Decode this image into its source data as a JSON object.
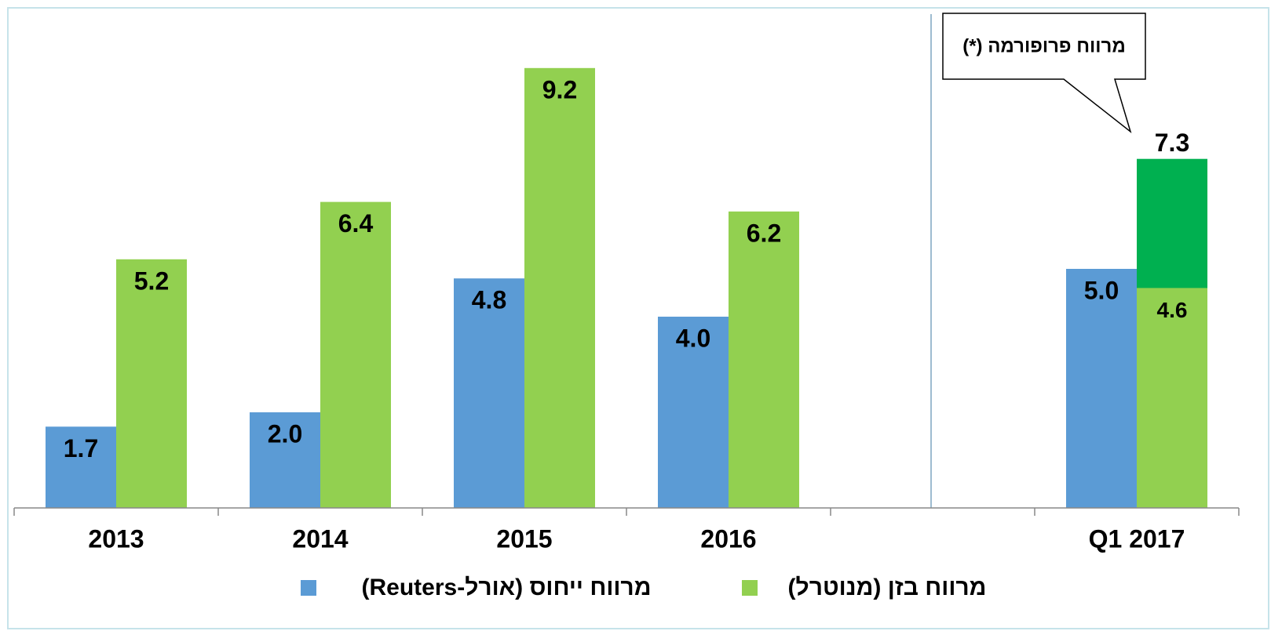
{
  "chart_data": {
    "type": "bar",
    "categories": [
      "2013",
      "2014",
      "2015",
      "2016",
      null,
      "Q1 2017"
    ],
    "series": [
      {
        "name": "מרווח ייחוס (אורל-Reuters)",
        "color": "#5b9bd5",
        "values": [
          1.7,
          2.0,
          4.8,
          4.0,
          null,
          5.0
        ],
        "value_labels": [
          "1.7",
          "2.0",
          "4.8",
          "4.0",
          null,
          "5.0"
        ]
      },
      {
        "name": "מרווח בזן (מנוטרל)",
        "color": "#92d050",
        "values": [
          5.2,
          6.4,
          9.2,
          6.2,
          null,
          4.6
        ],
        "value_labels": [
          "5.2",
          "6.4",
          "9.2",
          "6.2",
          null,
          "4.6"
        ]
      },
      {
        "name": "מרווח פרופורמה (*)",
        "color": "#00b050",
        "values": [
          null,
          null,
          null,
          null,
          null,
          7.3
        ],
        "value_labels": [
          null,
          null,
          null,
          null,
          null,
          "7.3"
        ]
      }
    ],
    "ylim": [
      0,
      10
    ]
  }
}
